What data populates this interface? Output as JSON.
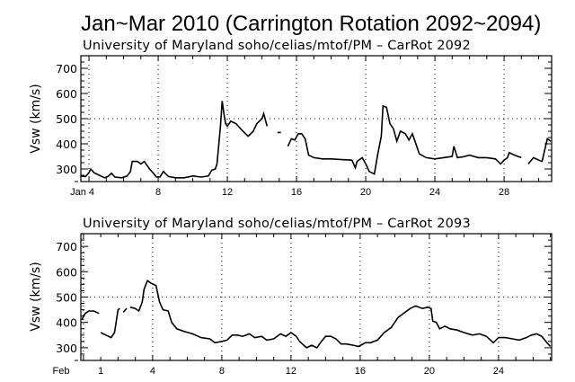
{
  "chart_data": {
    "type": "line",
    "title": "Jan~Mar 2010 (Carrington Rotation 2092~2094)",
    "panels": [
      {
        "subtitle": "University of Maryland  soho/celias/mtof/PM – CarRot 2092",
        "ylabel": "Vsw (km/s)",
        "ylim": [
          250,
          750
        ],
        "yticks": [
          300,
          400,
          500,
          600,
          700
        ],
        "ytick_labels": [
          "300",
          "400",
          "500",
          "600",
          "700"
        ],
        "xlim": [
          3.53,
          30.75
        ],
        "xticks": [
          4,
          8,
          12,
          16,
          20,
          24,
          28
        ],
        "xtick_labels": [
          "Jan 4",
          "8",
          "12",
          "16",
          "20",
          "24",
          "28"
        ],
        "month": "Jan",
        "grid": true,
        "series": [
          {
            "name": "Vsw",
            "points": [
              [
                3.55,
                272
              ],
              [
                3.8,
                270
              ],
              [
                4.0,
                285
              ],
              [
                4.1,
                300
              ],
              [
                4.3,
                285
              ],
              [
                4.6,
                275
              ],
              [
                4.9,
                265
              ],
              [
                5.1,
                270
              ],
              [
                5.3,
                283
              ],
              [
                5.5,
                268
              ],
              [
                5.9,
                265
              ],
              [
                6.2,
                272
              ],
              [
                6.4,
                290
              ],
              [
                6.5,
                330
              ],
              [
                6.8,
                330
              ],
              [
                7.0,
                320
              ],
              [
                7.2,
                330
              ],
              [
                7.5,
                300
              ],
              [
                7.7,
                285
              ],
              [
                7.9,
                268
              ],
              [
                8.1,
                268
              ],
              [
                8.3,
                290
              ],
              [
                8.6,
                270
              ],
              [
                9.0,
                265
              ],
              [
                9.5,
                265
              ],
              [
                10.0,
                272
              ],
              [
                10.5,
                268
              ],
              [
                10.9,
                272
              ],
              [
                11.1,
                295
              ],
              [
                11.3,
                300
              ],
              [
                11.4,
                320
              ],
              [
                11.6,
                470
              ],
              [
                11.7,
                570
              ],
              [
                11.8,
                520
              ],
              [
                11.9,
                480
              ],
              [
                12.0,
                470
              ],
              [
                12.2,
                490
              ],
              [
                12.5,
                480
              ],
              [
                12.9,
                450
              ],
              [
                13.2,
                430
              ],
              [
                13.5,
                450
              ],
              [
                13.7,
                480
              ],
              [
                14.0,
                500
              ],
              [
                14.1,
                520
              ],
              [
                14.3,
                470
              ]
            ]
          },
          {
            "name": "Vsw",
            "points": [
              [
                14.9,
                445
              ],
              [
                15.1,
                445
              ]
            ]
          },
          {
            "name": "Vsw",
            "points": [
              [
                15.5,
                390
              ],
              [
                15.7,
                420
              ],
              [
                15.9,
                415
              ],
              [
                16.1,
                440
              ],
              [
                16.3,
                440
              ],
              [
                16.5,
                420
              ],
              [
                16.7,
                355
              ],
              [
                17.0,
                345
              ],
              [
                17.5,
                340
              ],
              [
                18.0,
                340
              ],
              [
                18.5,
                338
              ],
              [
                19.2,
                335
              ],
              [
                19.4,
                305
              ],
              [
                19.5,
                330
              ],
              [
                19.8,
                345
              ],
              [
                20.0,
                320
              ],
              [
                20.2,
                290
              ],
              [
                20.5,
                280
              ],
              [
                20.7,
                360
              ],
              [
                20.9,
                430
              ],
              [
                21.0,
                550
              ],
              [
                21.2,
                545
              ],
              [
                21.4,
                480
              ],
              [
                21.6,
                460
              ],
              [
                21.8,
                410
              ],
              [
                22.0,
                450
              ],
              [
                22.3,
                440
              ],
              [
                22.5,
                415
              ],
              [
                22.7,
                440
              ],
              [
                22.9,
                400
              ],
              [
                23.1,
                360
              ],
              [
                23.5,
                345
              ],
              [
                24.0,
                340
              ],
              [
                24.5,
                345
              ],
              [
                25.0,
                350
              ],
              [
                25.1,
                390
              ],
              [
                25.3,
                345
              ],
              [
                25.6,
                348
              ],
              [
                26.0,
                355
              ],
              [
                26.5,
                345
              ],
              [
                27.0,
                345
              ],
              [
                27.5,
                340
              ],
              [
                27.8,
                320
              ],
              [
                28.0,
                335
              ],
              [
                28.2,
                345
              ],
              [
                28.3,
                365
              ],
              [
                28.6,
                355
              ],
              [
                29.0,
                345
              ]
            ]
          },
          {
            "name": "Vsw",
            "points": [
              [
                29.4,
                320
              ],
              [
                29.7,
                345
              ],
              [
                30.0,
                335
              ],
              [
                30.2,
                330
              ],
              [
                30.3,
                360
              ],
              [
                30.5,
                420
              ],
              [
                30.7,
                410
              ]
            ]
          }
        ]
      },
      {
        "subtitle": "University of Maryland  soho/celias/mtof/PM – CarRot 2093",
        "ylabel": "Vsw (km/s)",
        "ylim": [
          250,
          750
        ],
        "yticks": [
          300,
          400,
          500,
          600,
          700
        ],
        "ytick_labels": [
          "300",
          "400",
          "500",
          "600",
          "700"
        ],
        "xlim": [
          -0.15,
          27.07
        ],
        "xticks": [
          0,
          1,
          4,
          8,
          12,
          16,
          20,
          24
        ],
        "xtick_labels": [
          "Feb",
          "1",
          "4",
          "8",
          "12",
          "16",
          "20",
          "24"
        ],
        "month": "Feb",
        "grid": true,
        "series": [
          {
            "name": "Vsw",
            "points": [
              [
                -0.1,
                410
              ],
              [
                0.1,
                435
              ],
              [
                0.3,
                445
              ],
              [
                0.6,
                445
              ],
              [
                0.9,
                435
              ]
            ]
          },
          {
            "name": "Vsw",
            "points": [
              [
                1.0,
                360
              ],
              [
                1.3,
                350
              ],
              [
                1.6,
                340
              ],
              [
                1.8,
                360
              ],
              [
                2.0,
                450
              ],
              [
                2.1,
                455
              ]
            ]
          },
          {
            "name": "Vsw",
            "points": [
              [
                2.3,
                440
              ],
              [
                2.5,
                455
              ]
            ]
          },
          {
            "name": "Vsw",
            "points": [
              [
                2.7,
                460
              ],
              [
                3.0,
                455
              ],
              [
                3.2,
                445
              ],
              [
                3.4,
                480
              ],
              [
                3.5,
                530
              ],
              [
                3.7,
                565
              ],
              [
                3.9,
                555
              ],
              [
                4.2,
                545
              ],
              [
                4.4,
                480
              ],
              [
                4.6,
                450
              ],
              [
                4.9,
                445
              ],
              [
                5.1,
                400
              ],
              [
                5.4,
                375
              ],
              [
                5.8,
                365
              ],
              [
                6.3,
                355
              ],
              [
                6.8,
                340
              ],
              [
                7.3,
                335
              ],
              [
                7.6,
                320
              ],
              [
                8.0,
                325
              ],
              [
                8.3,
                330
              ],
              [
                8.6,
                350
              ],
              [
                8.9,
                350
              ],
              [
                9.2,
                345
              ],
              [
                9.6,
                355
              ],
              [
                9.9,
                340
              ],
              [
                10.3,
                345
              ],
              [
                10.6,
                330
              ],
              [
                11.0,
                335
              ],
              [
                11.4,
                355
              ],
              [
                11.7,
                345
              ],
              [
                12.0,
                360
              ],
              [
                12.3,
                345
              ],
              [
                12.5,
                325
              ],
              [
                12.9,
                300
              ],
              [
                13.2,
                310
              ],
              [
                13.5,
                300
              ],
              [
                13.7,
                320
              ],
              [
                14.0,
                345
              ],
              [
                14.3,
                345
              ],
              [
                14.6,
                335
              ],
              [
                14.9,
                315
              ],
              [
                15.2,
                315
              ],
              [
                15.6,
                310
              ],
              [
                15.9,
                305
              ],
              [
                16.3,
                320
              ],
              [
                16.6,
                320
              ],
              [
                17.0,
                330
              ],
              [
                17.4,
                360
              ],
              [
                17.8,
                380
              ],
              [
                18.2,
                420
              ],
              [
                18.6,
                440
              ],
              [
                18.9,
                455
              ],
              [
                19.2,
                465
              ],
              [
                19.6,
                455
              ],
              [
                19.9,
                460
              ],
              [
                20.1,
                455
              ],
              [
                20.2,
                405
              ],
              [
                20.4,
                400
              ],
              [
                20.6,
                375
              ],
              [
                20.9,
                385
              ],
              [
                21.2,
                375
              ],
              [
                21.6,
                370
              ],
              [
                22.0,
                360
              ],
              [
                22.5,
                350
              ],
              [
                22.9,
                355
              ],
              [
                23.3,
                345
              ],
              [
                23.7,
                320
              ],
              [
                24.0,
                340
              ],
              [
                24.4,
                340
              ],
              [
                24.8,
                335
              ],
              [
                25.2,
                330
              ],
              [
                25.6,
                340
              ],
              [
                25.9,
                350
              ],
              [
                26.2,
                355
              ],
              [
                26.5,
                345
              ],
              [
                26.8,
                320
              ],
              [
                27.0,
                305
              ]
            ]
          }
        ]
      }
    ]
  }
}
